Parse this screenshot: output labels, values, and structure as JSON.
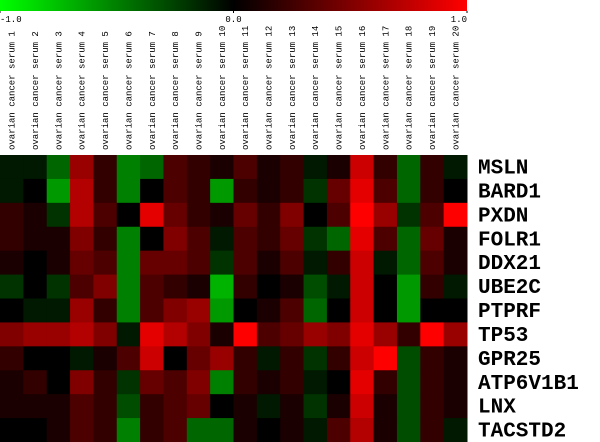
{
  "chart_data": {
    "type": "heatmap",
    "clim": [
      -1,
      1
    ],
    "colorbar_ticks": [
      {
        "value": -1,
        "label": "-1.0"
      },
      {
        "value": 0,
        "label": "0.0"
      },
      {
        "value": 1,
        "label": "1.0"
      }
    ],
    "colors": {
      "low": "#00ff00",
      "mid": "#000000",
      "high": "#ff0000"
    },
    "columns": [
      "ovarian cancer serum 1",
      "ovarian cancer serum 2",
      "ovarian cancer serum 3",
      "ovarian cancer serum 4",
      "ovarian cancer serum 5",
      "ovarian cancer serum 6",
      "ovarian cancer serum 7",
      "ovarian cancer serum 8",
      "ovarian cancer serum 9",
      "ovarian cancer serum 10",
      "ovarian cancer serum 11",
      "ovarian cancer serum 12",
      "ovarian cancer serum 13",
      "ovarian cancer serum 14",
      "ovarian cancer serum 15",
      "ovarian cancer serum 16",
      "ovarian cancer serum 17",
      "ovarian cancer serum 18",
      "ovarian cancer serum 19",
      "ovarian cancer serum 20"
    ],
    "rows": [
      "MSLN",
      "BARD1",
      "PXDN",
      "FOLR1",
      "DDX21",
      "UBE2C",
      "PTPRF",
      "TP53",
      "GPR25",
      "ATP6V1B1",
      "LNX",
      "TACSTD2"
    ],
    "values": [
      [
        -0.1,
        -0.1,
        -0.4,
        0.6,
        0.2,
        -0.5,
        -0.4,
        0.3,
        0.2,
        0.1,
        0.3,
        0.1,
        0.2,
        -0.1,
        0.1,
        0.8,
        0.2,
        -0.4,
        0.2,
        -0.1
      ],
      [
        -0.1,
        0,
        -0.6,
        0.7,
        0.2,
        -0.5,
        0,
        0.3,
        0.2,
        -0.6,
        0.2,
        0.1,
        0.2,
        -0.2,
        0.4,
        0.9,
        0.3,
        -0.4,
        0.2,
        0
      ],
      [
        0.2,
        0.1,
        -0.2,
        0.7,
        0.3,
        0,
        0.9,
        0.4,
        0.2,
        0.1,
        0.4,
        0.2,
        0.5,
        0,
        0.3,
        1.0,
        0.6,
        -0.2,
        0.3,
        1.0
      ],
      [
        0.2,
        0.1,
        0.1,
        0.5,
        0.2,
        -0.5,
        0,
        0.5,
        0.3,
        -0.1,
        0.3,
        0.2,
        0.4,
        -0.2,
        -0.4,
        0.9,
        0.3,
        -0.4,
        0.4,
        0.1
      ],
      [
        0.1,
        0,
        0.1,
        0.4,
        0.3,
        -0.5,
        0.4,
        0.4,
        0.3,
        -0.2,
        0.3,
        0.1,
        0.3,
        -0.1,
        0.2,
        0.8,
        -0.1,
        -0.4,
        0.3,
        0.1
      ],
      [
        -0.2,
        0,
        -0.2,
        0.3,
        0.5,
        -0.5,
        0.3,
        0.2,
        0.1,
        -0.7,
        0.2,
        0,
        0.1,
        -0.3,
        -0.1,
        0.8,
        0,
        -0.6,
        0.2,
        -0.1
      ],
      [
        0,
        -0.1,
        -0.1,
        0.6,
        0.2,
        -0.5,
        0.3,
        0.5,
        0.6,
        -0.6,
        0,
        0.1,
        0.3,
        -0.4,
        0,
        0.8,
        0,
        -0.6,
        0,
        0
      ],
      [
        0.5,
        0.6,
        0.6,
        0.7,
        0.5,
        -0.1,
        0.9,
        0.7,
        0.5,
        0.1,
        1.0,
        0.3,
        0.4,
        0.6,
        0.5,
        0.9,
        0.6,
        0.2,
        1.0,
        0.6
      ],
      [
        0.2,
        0,
        0,
        -0.1,
        0.1,
        0.3,
        0.8,
        0,
        0.4,
        0.6,
        0.2,
        -0.1,
        0.2,
        -0.2,
        0.2,
        0.8,
        1.0,
        -0.3,
        0.2,
        0.1
      ],
      [
        0.1,
        0.2,
        0,
        0.5,
        0.2,
        -0.2,
        0.4,
        0.3,
        0.5,
        -0.5,
        0.2,
        0.1,
        0.2,
        -0.1,
        0,
        0.9,
        0.2,
        -0.3,
        0.2,
        0.1
      ],
      [
        0.1,
        0.1,
        0.1,
        0.3,
        0.2,
        -0.3,
        0.2,
        0.3,
        0.4,
        0,
        0.1,
        -0.1,
        0.1,
        -0.2,
        0.1,
        0.8,
        0.1,
        -0.3,
        0.2,
        0.1
      ],
      [
        0,
        0,
        0.1,
        0.3,
        0.2,
        -0.5,
        0.2,
        0.3,
        -0.4,
        -0.4,
        0.1,
        0,
        0.1,
        -0.1,
        0.3,
        0.7,
        0.1,
        -0.3,
        0.2,
        -0.1
      ]
    ]
  }
}
